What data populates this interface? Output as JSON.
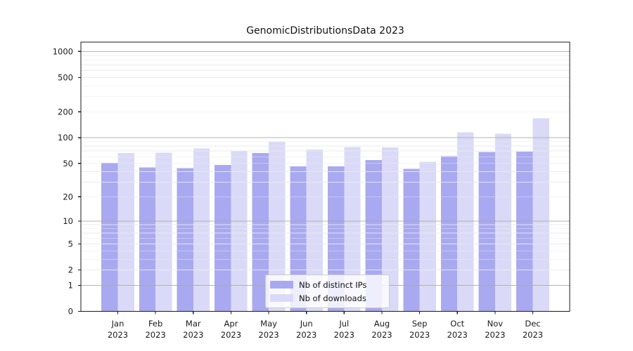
{
  "title": "GenomicDistributionsData 2023",
  "colors": {
    "ips_bar": "#a9a9f1",
    "downloads_bar": "#dadaf8",
    "axis": "#1a1a1a",
    "grid_major": "#a8a8a8",
    "grid_minor": "#e9e9e9",
    "legend_border": "#cccccc"
  },
  "legend": {
    "items": [
      {
        "label": "Nb of distinct IPs",
        "color": "#a9a9f1"
      },
      {
        "label": "Nb of downloads",
        "color": "#dadaf8"
      }
    ]
  },
  "chart_data": {
    "type": "bar",
    "title": "GenomicDistributionsData 2023",
    "categories": [
      "Jan",
      "Feb",
      "Mar",
      "Apr",
      "May",
      "Jun",
      "Jul",
      "Aug",
      "Sep",
      "Oct",
      "Nov",
      "Dec"
    ],
    "category_year": "2023",
    "series": [
      {
        "name": "Nb of distinct IPs",
        "color": "#a9a9f1",
        "values": [
          51,
          45,
          44,
          48,
          66,
          46,
          46,
          55,
          43,
          61,
          68,
          69
        ]
      },
      {
        "name": "Nb of downloads",
        "color": "#dadaf8",
        "values": [
          66,
          67,
          75,
          70,
          90,
          73,
          78,
          77,
          52,
          116,
          111,
          168
        ]
      }
    ],
    "xlabel": "",
    "ylabel": "",
    "y_scale": "log1p",
    "y_ticks": [
      0,
      1,
      2,
      5,
      10,
      20,
      50,
      100,
      200,
      500,
      1000
    ],
    "ylim": [
      0,
      1281
    ],
    "grid": true,
    "grid_major_at": [
      1,
      10,
      100,
      1000
    ],
    "legend_position": "lower center"
  }
}
